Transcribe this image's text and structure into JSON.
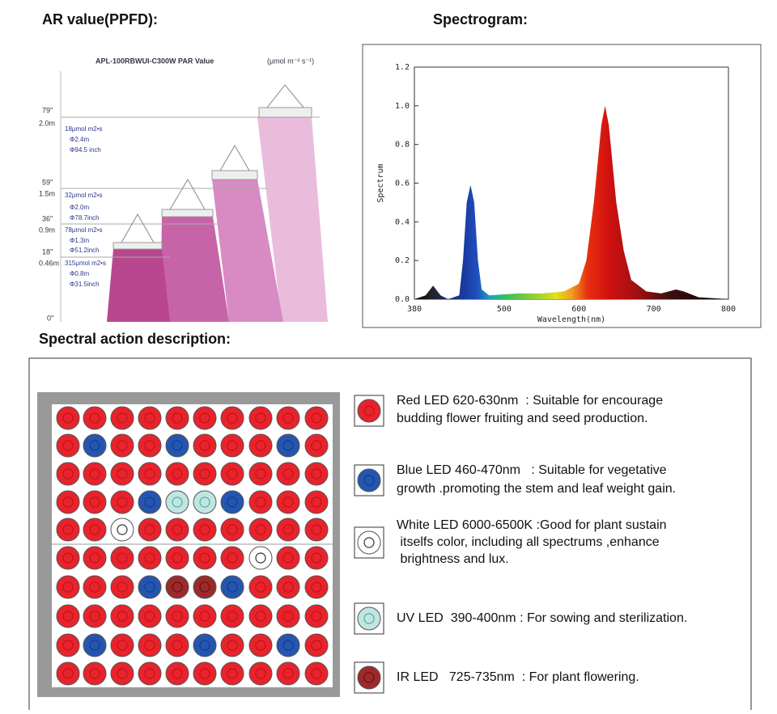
{
  "ppfd": {
    "title": "AR value(PPFD):",
    "model": "APL-100RBWUI-C300W  PAR Value",
    "unit": "(μmol m⁻² s⁻¹)",
    "levels": [
      {
        "inch": "79''",
        "meter": "2.0m",
        "lines": [
          "18μmol m2•s",
          "Φ2.4m",
          "Φ94.5 inch"
        ]
      },
      {
        "inch": "59''",
        "meter": "1.5m",
        "lines": [
          "32μmol m2•s",
          "Φ2.0m",
          "Φ78.7inch"
        ]
      },
      {
        "inch": "36''",
        "meter": "0.9m",
        "lines": [
          "78μmol m2•s",
          "Φ1.3m",
          "Φ51.2inch"
        ]
      },
      {
        "inch": "18''",
        "meter": "0.46m",
        "lines": [
          "315μmol m2•s",
          "Φ0.8m",
          "Φ31.5inch"
        ]
      }
    ],
    "zero": "0''"
  },
  "chart_data": {
    "type": "area",
    "title": "Spectrogram:",
    "x_label": "Wavelength(nm)",
    "y_label": "Spectrum",
    "x": [
      380,
      395,
      405,
      415,
      425,
      440,
      445,
      450,
      455,
      460,
      465,
      470,
      480,
      500,
      520,
      550,
      580,
      600,
      610,
      620,
      630,
      635,
      640,
      650,
      660,
      670,
      690,
      710,
      730,
      740,
      760,
      800
    ],
    "series": [
      {
        "name": "Spectrum",
        "values": [
          0,
          0.02,
          0.07,
          0.02,
          0,
          0.02,
          0.2,
          0.5,
          0.59,
          0.5,
          0.2,
          0.05,
          0.02,
          0.025,
          0.03,
          0.03,
          0.04,
          0.08,
          0.2,
          0.5,
          0.9,
          1.0,
          0.9,
          0.5,
          0.25,
          0.1,
          0.04,
          0.03,
          0.05,
          0.04,
          0.01,
          0
        ]
      }
    ],
    "xlim": [
      380,
      800
    ],
    "xticks": [
      380,
      500,
      600,
      700,
      800
    ],
    "ylim": [
      0,
      1.2
    ],
    "yticks": [
      {
        "value": 0,
        "label": "0.0"
      },
      0.2,
      0.4,
      0.6,
      0.8,
      {
        "value": 1,
        "label": "1.0"
      },
      1.2
    ]
  },
  "spectral": {
    "title": "Spectral action description:",
    "items": [
      {
        "lines": [
          "Red LED 620-630nm  : Suitable for encourage",
          "budding flower fruiting and seed production."
        ]
      },
      {
        "lines": [
          "Blue LED 460-470nm   : Suitable for vegetative",
          "growth .promoting the stem and leaf weight gain."
        ]
      },
      {
        "lines": [
          "White LED 6000-6500K :Good for plant sustain",
          " itselfs color, including all spectrums ,enhance",
          " brightness and lux."
        ]
      },
      {
        "lines": [
          "UV LED  390-400nm : For sowing and sterilization."
        ]
      },
      {
        "lines": [
          "IR LED   725-735nm  : For plant flowering."
        ]
      }
    ]
  }
}
